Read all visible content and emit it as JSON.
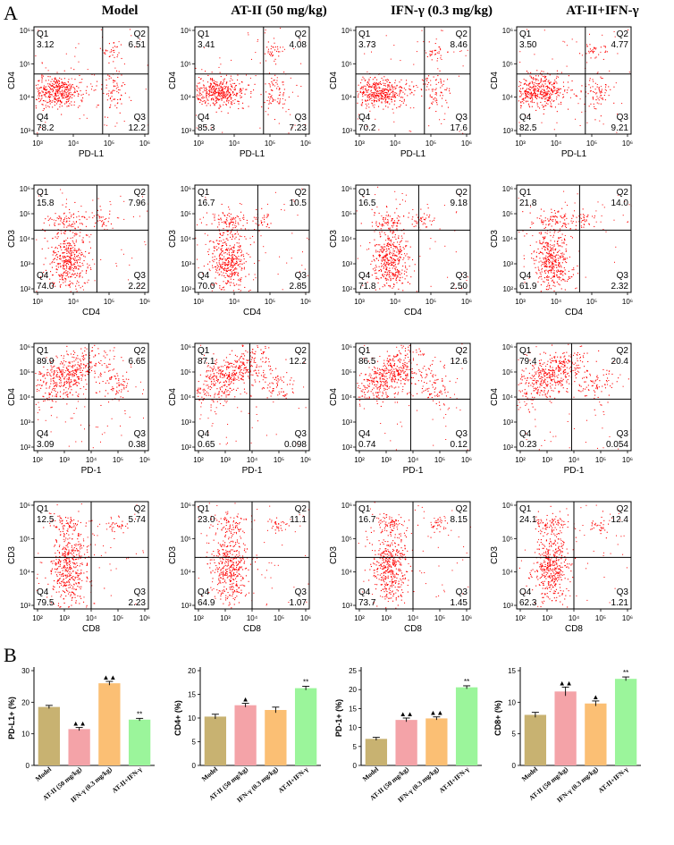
{
  "panel_labels": {
    "a": "A",
    "b": "B"
  },
  "column_titles": [
    "Model",
    "AT-II (50 mg/kg)",
    "IFN-γ (0.3 mg/kg)",
    "AT-II+IFN-γ"
  ],
  "quadrant_names": [
    "Q1",
    "Q2",
    "Q3",
    "Q4"
  ],
  "flow_rows": [
    {
      "xlabel": "PD-L1",
      "ylabel": "CD4",
      "xticks": [
        "10³",
        "10⁴",
        "10⁵",
        "10⁶"
      ],
      "yticks": [
        "10⁶",
        "10⁵",
        "10⁴",
        "10³"
      ],
      "cells": [
        {
          "q1": "3.12",
          "q2": "6.51",
          "q3": "12.2",
          "q4": "78.2"
        },
        {
          "q1": "3.41",
          "q2": "4.08",
          "q3": "7.23",
          "q4": "85.3"
        },
        {
          "q1": "3.73",
          "q2": "8.46",
          "q3": "17.6",
          "q4": "70.2"
        },
        {
          "q1": "3.50",
          "q2": "4.77",
          "q3": "9.21",
          "q4": "82.5"
        }
      ]
    },
    {
      "xlabel": "CD4",
      "ylabel": "CD3",
      "xticks": [
        "10³",
        "10⁴",
        "10⁵",
        "10⁶"
      ],
      "yticks": [
        "10⁶",
        "10⁵",
        "10⁴",
        "10³",
        "10²"
      ],
      "cells": [
        {
          "q1": "15.8",
          "q2": "7.96",
          "q3": "2.22",
          "q4": "74.0"
        },
        {
          "q1": "16.7",
          "q2": "10.5",
          "q3": "2.85",
          "q4": "70.0"
        },
        {
          "q1": "16.5",
          "q2": "9.18",
          "q3": "2.50",
          "q4": "71.8"
        },
        {
          "q1": "21.8",
          "q2": "14.0",
          "q3": "2.32",
          "q4": "61.9"
        }
      ]
    },
    {
      "xlabel": "PD-1",
      "ylabel": "CD4",
      "xticks": [
        "10²",
        "10³",
        "10⁴",
        "10⁵",
        "10⁶"
      ],
      "yticks": [
        "10⁶",
        "10⁵",
        "10⁴",
        "10³",
        "10²"
      ],
      "cells": [
        {
          "q1": "89.9",
          "q2": "6.65",
          "q3": "0.38",
          "q4": "3.09"
        },
        {
          "q1": "87.1",
          "q2": "12.2",
          "q3": "0.098",
          "q4": "0.65"
        },
        {
          "q1": "86.5",
          "q2": "12.6",
          "q3": "0.12",
          "q4": "0.74"
        },
        {
          "q1": "79.4",
          "q2": "20.4",
          "q3": "0.054",
          "q4": "0.23"
        }
      ]
    },
    {
      "xlabel": "CD8",
      "ylabel": "CD3",
      "xticks": [
        "10²",
        "10³",
        "10⁴",
        "10⁵",
        "10⁶"
      ],
      "yticks": [
        "10⁶",
        "10⁵",
        "10⁴",
        "10³"
      ],
      "cells": [
        {
          "q1": "12.5",
          "q2": "5.74",
          "q3": "2.23",
          "q4": "79.5"
        },
        {
          "q1": "23.0",
          "q2": "11.1",
          "q3": "1.07",
          "q4": "64.9"
        },
        {
          "q1": "16.7",
          "q2": "8.15",
          "q3": "1.45",
          "q4": "73.7"
        },
        {
          "q1": "24.1",
          "q2": "12.4",
          "q3": "1.21",
          "q4": "62.3"
        }
      ]
    }
  ],
  "colors": {
    "dots": "#ff0000",
    "bars": [
      "#c8b271",
      "#f4a3a8",
      "#fbbf74",
      "#9bf59b"
    ]
  },
  "chart_data": [
    {
      "type": "bar",
      "ylabel": "PD-L1+ (%)",
      "ylim": [
        0,
        30
      ],
      "yticks": [
        "0",
        "10",
        "20",
        "30"
      ],
      "categories": [
        "Model",
        "AT-II (50 mg/kg)",
        "IFN-γ (0.3 mg/kg)",
        "AT-II+IFN-γ"
      ],
      "values": [
        18.5,
        11.5,
        26.0,
        14.5
      ],
      "errors": [
        0.5,
        0.5,
        0.6,
        0.4
      ],
      "marks": [
        "",
        "▲▲",
        "▲▲",
        "**"
      ]
    },
    {
      "type": "bar",
      "ylabel": "CD4+ (%)",
      "ylim": [
        0,
        20
      ],
      "yticks": [
        "0",
        "5",
        "10",
        "15",
        "20"
      ],
      "categories": [
        "Model",
        "AT-II (50 mg/kg)",
        "IFN-γ (0.3 mg/kg)",
        "AT-II+IFN-γ"
      ],
      "values": [
        10.3,
        12.7,
        11.7,
        16.3
      ],
      "errors": [
        0.5,
        0.4,
        0.6,
        0.4
      ],
      "marks": [
        "",
        "▲",
        "",
        "**"
      ]
    },
    {
      "type": "bar",
      "ylabel": "PD-1+ (%)",
      "ylim": [
        0,
        25
      ],
      "yticks": [
        "0",
        "5",
        "10",
        "15",
        "20",
        "25"
      ],
      "categories": [
        "Model",
        "AT-II (50 mg/kg)",
        "IFN-γ (0.3 mg/kg)",
        "AT-II+IFN-γ"
      ],
      "values": [
        7.0,
        12.0,
        12.4,
        20.6
      ],
      "errors": [
        0.4,
        0.5,
        0.4,
        0.4
      ],
      "marks": [
        "",
        "▲▲",
        "▲▲",
        "**"
      ]
    },
    {
      "type": "bar",
      "ylabel": "CD8+ (%)",
      "ylim": [
        0,
        15
      ],
      "yticks": [
        "0",
        "5",
        "10",
        "15"
      ],
      "categories": [
        "Model",
        "AT-II (50 mg/kg)",
        "IFN-γ (0.3 mg/kg)",
        "AT-II+IFN-γ"
      ],
      "values": [
        8.0,
        11.7,
        9.8,
        13.7
      ],
      "errors": [
        0.4,
        0.7,
        0.4,
        0.3
      ],
      "marks": [
        "",
        "▲▲",
        "▲",
        "**"
      ]
    }
  ]
}
